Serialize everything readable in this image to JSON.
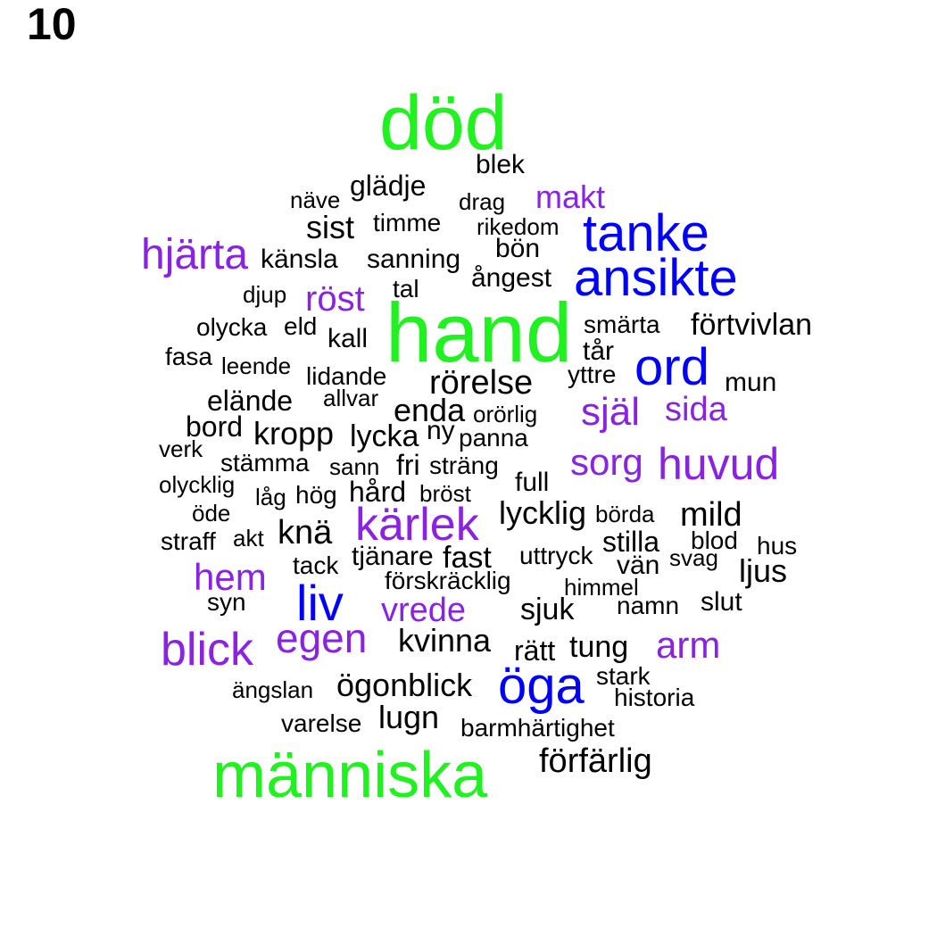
{
  "page_number": "10",
  "colors": {
    "green": "#1ff21f",
    "blue": "#0000ff",
    "purple": "#8a22e2",
    "black": "#000000"
  },
  "words": [
    {
      "text": "död",
      "color": "green"
    },
    {
      "text": "blek",
      "color": "black"
    },
    {
      "text": "glädje",
      "color": "black"
    },
    {
      "text": "näve",
      "color": "black"
    },
    {
      "text": "drag",
      "color": "black"
    },
    {
      "text": "makt",
      "color": "purple"
    },
    {
      "text": "sist",
      "color": "black"
    },
    {
      "text": "timme",
      "color": "black"
    },
    {
      "text": "rikedom",
      "color": "black"
    },
    {
      "text": "tanke",
      "color": "blue"
    },
    {
      "text": "hjärta",
      "color": "purple"
    },
    {
      "text": "känsla",
      "color": "black"
    },
    {
      "text": "sanning",
      "color": "black"
    },
    {
      "text": "bön",
      "color": "black"
    },
    {
      "text": "ansikte",
      "color": "blue"
    },
    {
      "text": "ångest",
      "color": "black"
    },
    {
      "text": "djup",
      "color": "black"
    },
    {
      "text": "röst",
      "color": "purple"
    },
    {
      "text": "tal",
      "color": "black"
    },
    {
      "text": "hand",
      "color": "green"
    },
    {
      "text": "smärta",
      "color": "black"
    },
    {
      "text": "förtvivlan",
      "color": "black"
    },
    {
      "text": "olycka",
      "color": "black"
    },
    {
      "text": "eld",
      "color": "black"
    },
    {
      "text": "kall",
      "color": "black"
    },
    {
      "text": "tår",
      "color": "black"
    },
    {
      "text": "fasa",
      "color": "black"
    },
    {
      "text": "leende",
      "color": "black"
    },
    {
      "text": "lidande",
      "color": "black"
    },
    {
      "text": "yttre",
      "color": "black"
    },
    {
      "text": "ord",
      "color": "blue"
    },
    {
      "text": "mun",
      "color": "black"
    },
    {
      "text": "rörelse",
      "color": "black"
    },
    {
      "text": "elände",
      "color": "black"
    },
    {
      "text": "allvar",
      "color": "black"
    },
    {
      "text": "enda",
      "color": "black"
    },
    {
      "text": "orörlig",
      "color": "black"
    },
    {
      "text": "själ",
      "color": "purple"
    },
    {
      "text": "sida",
      "color": "purple"
    },
    {
      "text": "bord",
      "color": "black"
    },
    {
      "text": "kropp",
      "color": "black"
    },
    {
      "text": "lycka",
      "color": "black"
    },
    {
      "text": "ny",
      "color": "black"
    },
    {
      "text": "panna",
      "color": "black"
    },
    {
      "text": "verk",
      "color": "black"
    },
    {
      "text": "sorg",
      "color": "purple"
    },
    {
      "text": "huvud",
      "color": "purple"
    },
    {
      "text": "stämma",
      "color": "black"
    },
    {
      "text": "sann",
      "color": "black"
    },
    {
      "text": "fri",
      "color": "black"
    },
    {
      "text": "sträng",
      "color": "black"
    },
    {
      "text": "olycklig",
      "color": "black"
    },
    {
      "text": "full",
      "color": "black"
    },
    {
      "text": "låg",
      "color": "black"
    },
    {
      "text": "hög",
      "color": "black"
    },
    {
      "text": "hård",
      "color": "black"
    },
    {
      "text": "bröst",
      "color": "black"
    },
    {
      "text": "öde",
      "color": "black"
    },
    {
      "text": "kärlek",
      "color": "purple"
    },
    {
      "text": "lycklig",
      "color": "black"
    },
    {
      "text": "börda",
      "color": "black"
    },
    {
      "text": "mild",
      "color": "black"
    },
    {
      "text": "straff",
      "color": "black"
    },
    {
      "text": "akt",
      "color": "black"
    },
    {
      "text": "knä",
      "color": "black"
    },
    {
      "text": "stilla",
      "color": "black"
    },
    {
      "text": "blod",
      "color": "black"
    },
    {
      "text": "hus",
      "color": "black"
    },
    {
      "text": "tack",
      "color": "black"
    },
    {
      "text": "tjänare",
      "color": "black"
    },
    {
      "text": "fast",
      "color": "black"
    },
    {
      "text": "uttryck",
      "color": "black"
    },
    {
      "text": "vän",
      "color": "black"
    },
    {
      "text": "svag",
      "color": "black"
    },
    {
      "text": "ljus",
      "color": "black"
    },
    {
      "text": "hem",
      "color": "purple"
    },
    {
      "text": "förskräcklig",
      "color": "black"
    },
    {
      "text": "himmel",
      "color": "black"
    },
    {
      "text": "syn",
      "color": "black"
    },
    {
      "text": "liv",
      "color": "blue"
    },
    {
      "text": "vrede",
      "color": "purple"
    },
    {
      "text": "sjuk",
      "color": "black"
    },
    {
      "text": "namn",
      "color": "black"
    },
    {
      "text": "slut",
      "color": "black"
    },
    {
      "text": "blick",
      "color": "purple"
    },
    {
      "text": "egen",
      "color": "purple"
    },
    {
      "text": "kvinna",
      "color": "black"
    },
    {
      "text": "rätt",
      "color": "black"
    },
    {
      "text": "tung",
      "color": "black"
    },
    {
      "text": "arm",
      "color": "purple"
    },
    {
      "text": "ängslan",
      "color": "black"
    },
    {
      "text": "ögonblick",
      "color": "black"
    },
    {
      "text": "öga",
      "color": "blue"
    },
    {
      "text": "stark",
      "color": "black"
    },
    {
      "text": "historia",
      "color": "black"
    },
    {
      "text": "varelse",
      "color": "black"
    },
    {
      "text": "lugn",
      "color": "black"
    },
    {
      "text": "barmhärtighet",
      "color": "black"
    },
    {
      "text": "förfärlig",
      "color": "black"
    },
    {
      "text": "människa",
      "color": "green"
    }
  ]
}
